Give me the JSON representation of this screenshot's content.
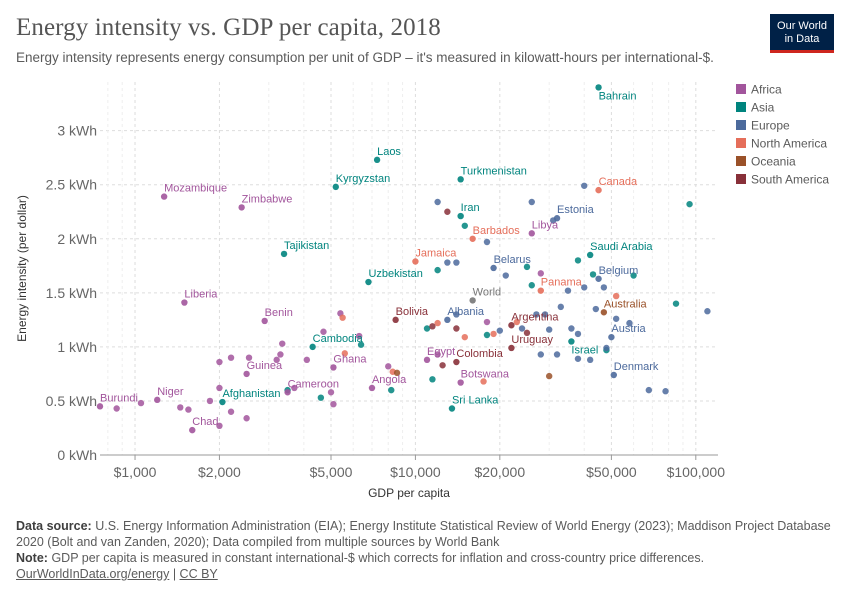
{
  "header": {
    "title": "Energy intensity vs. GDP per capita, 2018",
    "subtitle": "Energy intensity represents energy consumption per unit of GDP – it's measured in kilowatt-hours per international-$.",
    "logo_line1": "Our World",
    "logo_line2": "in Data"
  },
  "footer": {
    "source_label": "Data source:",
    "source_text": "U.S. Energy Information Administration (EIA); Energy Institute Statistical Review of World Energy (2023); Maddison Project Database 2020 (Bolt and van Zanden, 2020); Data compiled from multiple sources by World Bank",
    "note_label": "Note:",
    "note_text": "GDP per capita is measured in constant international-$ which corrects for inflation and cross-country price differences.",
    "link1": "OurWorldInData.org/energy",
    "separator": "|",
    "link2": "CC BY"
  },
  "colors": {
    "Africa": "#a2559c",
    "Asia": "#00847e",
    "Europe": "#4c6a9c",
    "North America": "#e56e5a",
    "Oceania": "#9a5129",
    "South America": "#883039",
    "World": "#777777"
  },
  "chart_data": {
    "type": "scatter",
    "xlabel": "GDP per capita",
    "ylabel": "Energy intensity (per dollar)",
    "x_scale": "log",
    "xlim": [
      750,
      120000
    ],
    "ylim": [
      0,
      3.45
    ],
    "x_ticks": [
      {
        "value": 1000,
        "label": "$1,000"
      },
      {
        "value": 2000,
        "label": "$2,000"
      },
      {
        "value": 5000,
        "label": "$5,000"
      },
      {
        "value": 10000,
        "label": "$10,000"
      },
      {
        "value": 20000,
        "label": "$20,000"
      },
      {
        "value": 50000,
        "label": "$50,000"
      },
      {
        "value": 100000,
        "label": "$100,000"
      }
    ],
    "y_ticks": [
      {
        "value": 0,
        "label": "0 kWh"
      },
      {
        "value": 0.5,
        "label": "0.5 kWh"
      },
      {
        "value": 1,
        "label": "1 kWh"
      },
      {
        "value": 1.5,
        "label": "1.5 kWh"
      },
      {
        "value": 2,
        "label": "2 kWh"
      },
      {
        "value": 2.5,
        "label": "2.5 kWh"
      },
      {
        "value": 3,
        "label": "3 kWh"
      }
    ],
    "grid": true,
    "legend_position": "top-right",
    "legend": [
      "Africa",
      "Asia",
      "Europe",
      "North America",
      "Oceania",
      "South America"
    ],
    "labeled_points": [
      {
        "name": "Bahrain",
        "region": "Asia",
        "x": 45000,
        "y": 3.4
      },
      {
        "name": "Laos",
        "region": "Asia",
        "x": 7300,
        "y": 2.73
      },
      {
        "name": "Turkmenistan",
        "region": "Asia",
        "x": 14500,
        "y": 2.55
      },
      {
        "name": "Kyrgyzstan",
        "region": "Asia",
        "x": 5200,
        "y": 2.48
      },
      {
        "name": "Mozambique",
        "region": "Africa",
        "x": 1270,
        "y": 2.39
      },
      {
        "name": "Zimbabwe",
        "region": "Africa",
        "x": 2400,
        "y": 2.29
      },
      {
        "name": "Canada",
        "region": "North America",
        "x": 45000,
        "y": 2.45
      },
      {
        "name": "Iran",
        "region": "Asia",
        "x": 14500,
        "y": 2.21
      },
      {
        "name": "Estonia",
        "region": "Europe",
        "x": 32000,
        "y": 2.19
      },
      {
        "name": "Barbados",
        "region": "North America",
        "x": 16000,
        "y": 2.0
      },
      {
        "name": "Libya",
        "region": "Africa",
        "x": 26000,
        "y": 2.05
      },
      {
        "name": "Tajikistan",
        "region": "Asia",
        "x": 3400,
        "y": 1.86
      },
      {
        "name": "Saudi Arabia",
        "region": "Asia",
        "x": 42000,
        "y": 1.85
      },
      {
        "name": "Jamaica",
        "region": "North America",
        "x": 10000,
        "y": 1.79
      },
      {
        "name": "Belarus",
        "region": "Europe",
        "x": 19000,
        "y": 1.73
      },
      {
        "name": "Uzbekistan",
        "region": "Asia",
        "x": 6800,
        "y": 1.6
      },
      {
        "name": "Belgium",
        "region": "Europe",
        "x": 45000,
        "y": 1.63
      },
      {
        "name": "Panama",
        "region": "North America",
        "x": 28000,
        "y": 1.52
      },
      {
        "name": "World",
        "region": "World",
        "x": 16000,
        "y": 1.43
      },
      {
        "name": "Liberia",
        "region": "Africa",
        "x": 1500,
        "y": 1.41
      },
      {
        "name": "Australia",
        "region": "Oceania",
        "x": 47000,
        "y": 1.32
      },
      {
        "name": "Bolivia",
        "region": "South America",
        "x": 8500,
        "y": 1.25
      },
      {
        "name": "Albania",
        "region": "Europe",
        "x": 13000,
        "y": 1.25
      },
      {
        "name": "Benin",
        "region": "Africa",
        "x": 2900,
        "y": 1.24
      },
      {
        "name": "Argentina",
        "region": "South America",
        "x": 22000,
        "y": 1.2
      },
      {
        "name": "Israel",
        "region": "Asia",
        "x": 36000,
        "y": 1.05
      },
      {
        "name": "Austria",
        "region": "Europe",
        "x": 50000,
        "y": 1.09
      },
      {
        "name": "Cambodia",
        "region": "Asia",
        "x": 4300,
        "y": 1.0
      },
      {
        "name": "Uruguay",
        "region": "South America",
        "x": 22000,
        "y": 0.99
      },
      {
        "name": "Colombia",
        "region": "South America",
        "x": 14000,
        "y": 0.86
      },
      {
        "name": "Egypt",
        "region": "Africa",
        "x": 11000,
        "y": 0.88
      },
      {
        "name": "Ghana",
        "region": "Africa",
        "x": 5100,
        "y": 0.81
      },
      {
        "name": "Guinea",
        "region": "Africa",
        "x": 2500,
        "y": 0.75
      },
      {
        "name": "Denmark",
        "region": "Europe",
        "x": 51000,
        "y": 0.74
      },
      {
        "name": "Botswana",
        "region": "Africa",
        "x": 14500,
        "y": 0.67
      },
      {
        "name": "Angola",
        "region": "Africa",
        "x": 7000,
        "y": 0.62
      },
      {
        "name": "Cameroon",
        "region": "Africa",
        "x": 3500,
        "y": 0.58
      },
      {
        "name": "Burundi",
        "region": "Africa",
        "x": 750,
        "y": 0.45
      },
      {
        "name": "Niger",
        "region": "Africa",
        "x": 1200,
        "y": 0.51
      },
      {
        "name": "Afghanistan",
        "region": "Asia",
        "x": 2050,
        "y": 0.49
      },
      {
        "name": "Sri Lanka",
        "region": "Asia",
        "x": 13500,
        "y": 0.43
      },
      {
        "name": "Chad",
        "region": "Africa",
        "x": 1600,
        "y": 0.23
      }
    ],
    "other_points": [
      {
        "region": "Africa",
        "x": 860,
        "y": 0.43
      },
      {
        "region": "Africa",
        "x": 1050,
        "y": 0.48
      },
      {
        "region": "Africa",
        "x": 1450,
        "y": 0.44
      },
      {
        "region": "Africa",
        "x": 1550,
        "y": 0.42
      },
      {
        "region": "Africa",
        "x": 1850,
        "y": 0.5
      },
      {
        "region": "Africa",
        "x": 2000,
        "y": 0.62
      },
      {
        "region": "Africa",
        "x": 2200,
        "y": 0.4
      },
      {
        "region": "Africa",
        "x": 2000,
        "y": 0.27
      },
      {
        "region": "Africa",
        "x": 2500,
        "y": 0.34
      },
      {
        "region": "Africa",
        "x": 2000,
        "y": 0.86
      },
      {
        "region": "Africa",
        "x": 2200,
        "y": 0.9
      },
      {
        "region": "Africa",
        "x": 2550,
        "y": 0.9
      },
      {
        "region": "Africa",
        "x": 3200,
        "y": 0.88
      },
      {
        "region": "Africa",
        "x": 3300,
        "y": 0.93
      },
      {
        "region": "Africa",
        "x": 3350,
        "y": 1.03
      },
      {
        "region": "Africa",
        "x": 3700,
        "y": 0.62
      },
      {
        "region": "Africa",
        "x": 4100,
        "y": 0.88
      },
      {
        "region": "Africa",
        "x": 4700,
        "y": 1.14
      },
      {
        "region": "Africa",
        "x": 5400,
        "y": 1.31
      },
      {
        "region": "Africa",
        "x": 5000,
        "y": 0.58
      },
      {
        "region": "Africa",
        "x": 5100,
        "y": 0.47
      },
      {
        "region": "Africa",
        "x": 6300,
        "y": 1.1
      },
      {
        "region": "Africa",
        "x": 8000,
        "y": 0.82
      },
      {
        "region": "Africa",
        "x": 12000,
        "y": 0.93
      },
      {
        "region": "Africa",
        "x": 18000,
        "y": 1.23
      },
      {
        "region": "Africa",
        "x": 28000,
        "y": 1.68
      },
      {
        "region": "Asia",
        "x": 3500,
        "y": 0.6
      },
      {
        "region": "Asia",
        "x": 4600,
        "y": 0.53
      },
      {
        "region": "Asia",
        "x": 6400,
        "y": 1.02
      },
      {
        "region": "Asia",
        "x": 8200,
        "y": 0.6
      },
      {
        "region": "Asia",
        "x": 11500,
        "y": 0.7
      },
      {
        "region": "Asia",
        "x": 11000,
        "y": 1.17
      },
      {
        "region": "Asia",
        "x": 12000,
        "y": 1.71
      },
      {
        "region": "Asia",
        "x": 15000,
        "y": 2.12
      },
      {
        "region": "Asia",
        "x": 18000,
        "y": 1.11
      },
      {
        "region": "Asia",
        "x": 25000,
        "y": 1.74
      },
      {
        "region": "Asia",
        "x": 26000,
        "y": 1.57
      },
      {
        "region": "Asia",
        "x": 38000,
        "y": 1.8
      },
      {
        "region": "Asia",
        "x": 43000,
        "y": 1.67
      },
      {
        "region": "Asia",
        "x": 60000,
        "y": 1.66
      },
      {
        "region": "Asia",
        "x": 85000,
        "y": 1.4
      },
      {
        "region": "Asia",
        "x": 95000,
        "y": 2.32
      },
      {
        "region": "Asia",
        "x": 48000,
        "y": 0.97
      },
      {
        "region": "Europe",
        "x": 12000,
        "y": 2.34
      },
      {
        "region": "Europe",
        "x": 13000,
        "y": 1.78
      },
      {
        "region": "Europe",
        "x": 14000,
        "y": 1.78
      },
      {
        "region": "Europe",
        "x": 18000,
        "y": 1.97
      },
      {
        "region": "Europe",
        "x": 21000,
        "y": 1.66
      },
      {
        "region": "Europe",
        "x": 26000,
        "y": 2.34
      },
      {
        "region": "Europe",
        "x": 31000,
        "y": 2.17
      },
      {
        "region": "Europe",
        "x": 40000,
        "y": 2.49
      },
      {
        "region": "Europe",
        "x": 35000,
        "y": 1.52
      },
      {
        "region": "Europe",
        "x": 40000,
        "y": 1.55
      },
      {
        "region": "Europe",
        "x": 47000,
        "y": 1.55
      },
      {
        "region": "Europe",
        "x": 14000,
        "y": 1.3
      },
      {
        "region": "Europe",
        "x": 20000,
        "y": 1.15
      },
      {
        "region": "Europe",
        "x": 24000,
        "y": 1.17
      },
      {
        "region": "Europe",
        "x": 27000,
        "y": 1.3
      },
      {
        "region": "Europe",
        "x": 29000,
        "y": 1.3
      },
      {
        "region": "Europe",
        "x": 30000,
        "y": 1.16
      },
      {
        "region": "Europe",
        "x": 33000,
        "y": 1.37
      },
      {
        "region": "Europe",
        "x": 36000,
        "y": 1.17
      },
      {
        "region": "Europe",
        "x": 38000,
        "y": 1.12
      },
      {
        "region": "Europe",
        "x": 44000,
        "y": 1.35
      },
      {
        "region": "Europe",
        "x": 52000,
        "y": 1.26
      },
      {
        "region": "Europe",
        "x": 58000,
        "y": 1.22
      },
      {
        "region": "Europe",
        "x": 28000,
        "y": 0.93
      },
      {
        "region": "Europe",
        "x": 32000,
        "y": 0.93
      },
      {
        "region": "Europe",
        "x": 38000,
        "y": 0.89
      },
      {
        "region": "Europe",
        "x": 42000,
        "y": 0.88
      },
      {
        "region": "Europe",
        "x": 48000,
        "y": 0.99
      },
      {
        "region": "Europe",
        "x": 68000,
        "y": 0.6
      },
      {
        "region": "Europe",
        "x": 78000,
        "y": 0.59
      },
      {
        "region": "Europe",
        "x": 110000,
        "y": 1.33
      },
      {
        "region": "North America",
        "x": 5500,
        "y": 1.27
      },
      {
        "region": "North America",
        "x": 5600,
        "y": 0.94
      },
      {
        "region": "North America",
        "x": 8300,
        "y": 0.77
      },
      {
        "region": "North America",
        "x": 12000,
        "y": 1.22
      },
      {
        "region": "North America",
        "x": 15000,
        "y": 1.09
      },
      {
        "region": "North America",
        "x": 17500,
        "y": 0.68
      },
      {
        "region": "North America",
        "x": 19000,
        "y": 1.12
      },
      {
        "region": "North America",
        "x": 23000,
        "y": 1.23
      },
      {
        "region": "North America",
        "x": 52000,
        "y": 1.47
      },
      {
        "region": "Oceania",
        "x": 30000,
        "y": 0.73
      },
      {
        "region": "Oceania",
        "x": 8600,
        "y": 0.76
      },
      {
        "region": "South America",
        "x": 13000,
        "y": 2.25
      },
      {
        "region": "South America",
        "x": 11500,
        "y": 1.19
      },
      {
        "region": "South America",
        "x": 14000,
        "y": 1.17
      },
      {
        "region": "South America",
        "x": 25000,
        "y": 1.13
      },
      {
        "region": "South America",
        "x": 12500,
        "y": 0.83
      }
    ]
  }
}
